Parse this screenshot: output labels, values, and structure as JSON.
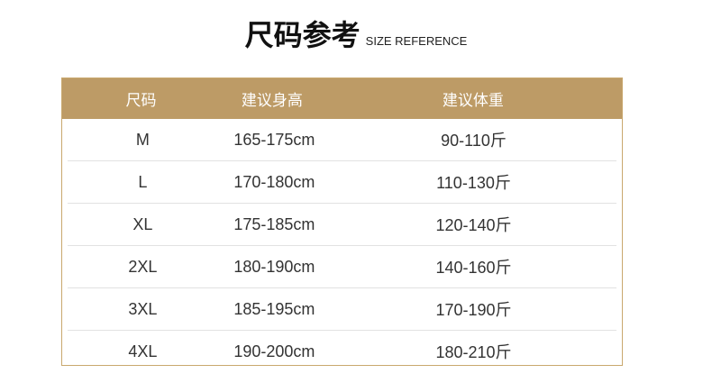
{
  "title": {
    "cn": "尺码参考",
    "en": "SIZE REFERENCE"
  },
  "columns": [
    "尺码",
    "建议身高",
    "建议体重"
  ],
  "rows": [
    [
      "M",
      "165-175cm",
      "90-110斤"
    ],
    [
      "L",
      "170-180cm",
      "110-130斤"
    ],
    [
      "XL",
      "175-185cm",
      "120-140斤"
    ],
    [
      "2XL",
      "180-190cm",
      "140-160斤"
    ],
    [
      "3XL",
      "185-195cm",
      "170-190斤"
    ],
    [
      "4XL",
      "190-200cm",
      "180-210斤"
    ]
  ],
  "colors": {
    "header": "#bd9b66",
    "border": "#c9a86e"
  }
}
